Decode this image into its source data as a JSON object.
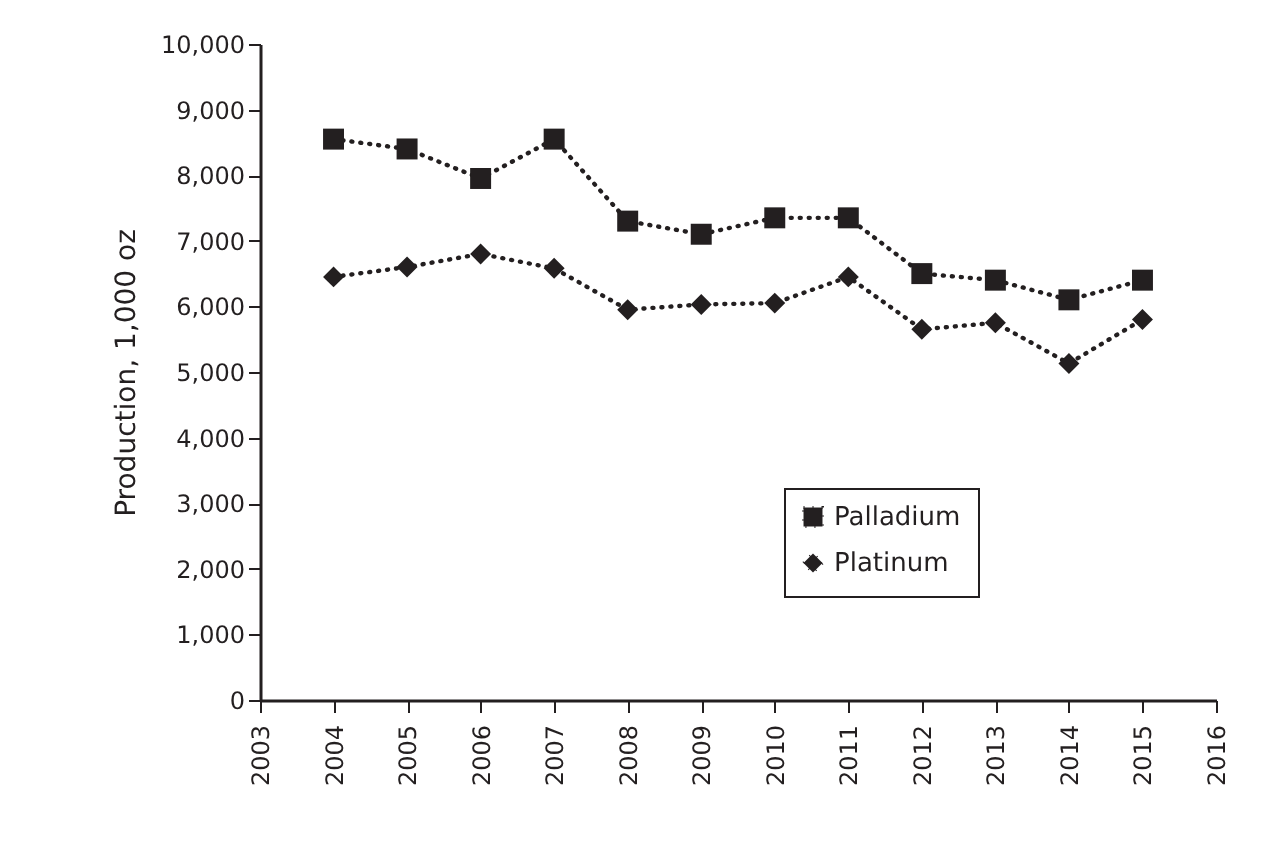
{
  "chart_data": {
    "type": "line",
    "ylabel": "Production, 1,000 oz",
    "x": [
      2004,
      2005,
      2006,
      2007,
      2008,
      2009,
      2010,
      2011,
      2012,
      2013,
      2014,
      2015
    ],
    "series": [
      {
        "name": "Palladium",
        "color": "#231f20",
        "marker": "square",
        "line_style": "dotted",
        "values": [
          8550,
          8400,
          7950,
          8550,
          7300,
          7100,
          7350,
          7350,
          6500,
          6400,
          6100,
          6400
        ]
      },
      {
        "name": "Platinum",
        "color": "#231f20",
        "marker": "diamond",
        "line_style": "dotted",
        "values": [
          6450,
          6600,
          6800,
          6580,
          5950,
          6030,
          6050,
          6450,
          5650,
          5750,
          5130,
          5800
        ]
      }
    ],
    "xlim": [
      2003,
      2016
    ],
    "xticks": [
      2003,
      2004,
      2005,
      2006,
      2007,
      2008,
      2009,
      2010,
      2011,
      2012,
      2013,
      2014,
      2015,
      2016
    ],
    "ylim": [
      0,
      10000
    ],
    "yticks": [
      {
        "value": 0,
        "label": "0"
      },
      {
        "value": 1000,
        "label": "1,000"
      },
      {
        "value": 2000,
        "label": "2,000"
      },
      {
        "value": 3000,
        "label": "3,000"
      },
      {
        "value": 4000,
        "label": "4,000"
      },
      {
        "value": 5000,
        "label": "5,000"
      },
      {
        "value": 6000,
        "label": "6,000"
      },
      {
        "value": 7000,
        "label": "7,000"
      },
      {
        "value": 8000,
        "label": "8,000"
      },
      {
        "value": 9000,
        "label": "9,000"
      },
      {
        "value": 10000,
        "label": "10,000"
      }
    ],
    "grid": false,
    "legend": "right"
  }
}
